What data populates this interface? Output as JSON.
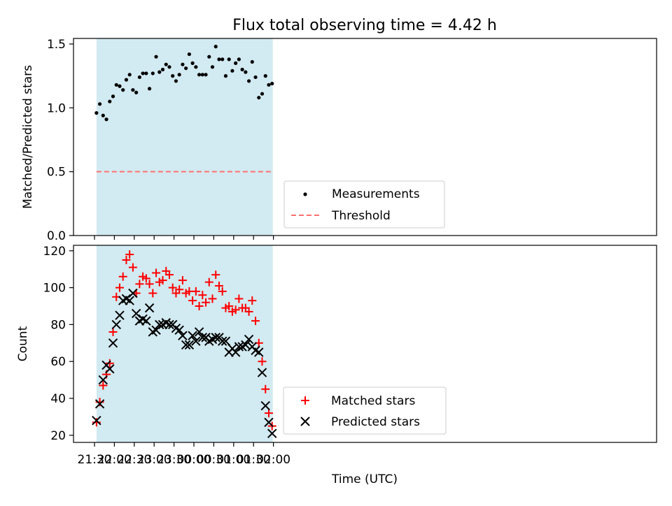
{
  "colors": {
    "observing_window": "#add8e6",
    "measurements": "#000000",
    "threshold": "#ff7070",
    "matched": "#ff0000",
    "predicted": "#000000"
  },
  "chart_data": [
    {
      "type": "scatter",
      "title": "Flux total observing time = 4.42 h",
      "ylabel": "Matched/Predicted stars",
      "xlabel": "",
      "ylim": [
        0.0,
        1.55
      ],
      "yticks": [
        "0.0",
        "0.5",
        "1.0",
        "1.5"
      ],
      "ytick_values": [
        0.0,
        0.5,
        1.0,
        1.5
      ],
      "shaded_region": [
        "21:33",
        "22:00+1:59"
      ],
      "threshold": 0.5,
      "legend": {
        "position": "lower center",
        "entries": [
          "Measurements",
          "Threshold"
        ]
      },
      "series": [
        {
          "name": "Measurements",
          "x": [
            "21:33",
            "21:38",
            "21:43",
            "21:48",
            "21:53",
            "21:58",
            "22:03",
            "22:08",
            "22:13",
            "22:18",
            "22:23",
            "22:28",
            "22:33",
            "22:38",
            "22:43",
            "22:48",
            "22:53",
            "22:58",
            "23:03",
            "23:08",
            "23:13",
            "23:18",
            "23:23",
            "23:28",
            "23:33",
            "23:38",
            "23:43",
            "23:48",
            "23:53",
            "23:58",
            "00:03",
            "00:08",
            "00:13",
            "00:18",
            "00:23",
            "00:28",
            "00:33",
            "00:38",
            "00:43",
            "00:48",
            "00:53",
            "00:58",
            "01:03",
            "01:08",
            "01:13",
            "01:18",
            "01:23",
            "01:28",
            "01:33",
            "01:38",
            "01:43",
            "01:48",
            "01:53",
            "01:58"
          ],
          "values": [
            0.96,
            1.03,
            0.94,
            0.91,
            1.05,
            1.09,
            1.18,
            1.17,
            1.14,
            1.22,
            1.26,
            1.14,
            1.12,
            1.24,
            1.27,
            1.27,
            1.15,
            1.27,
            1.4,
            1.28,
            1.3,
            1.34,
            1.32,
            1.25,
            1.21,
            1.26,
            1.34,
            1.31,
            1.42,
            1.35,
            1.32,
            1.26,
            1.26,
            1.26,
            1.4,
            1.32,
            1.48,
            1.38,
            1.38,
            1.25,
            1.38,
            1.29,
            1.35,
            1.38,
            1.3,
            1.28,
            1.21,
            1.36,
            1.24,
            1.08,
            1.11,
            1.25,
            1.18,
            1.19
          ]
        }
      ]
    },
    {
      "type": "scatter",
      "title": "",
      "ylabel": "Count",
      "xlabel": "Time (UTC)",
      "ylim": [
        16,
        122
      ],
      "yticks": [
        "20",
        "40",
        "60",
        "80",
        "100",
        "120"
      ],
      "ytick_values": [
        20,
        40,
        60,
        80,
        100,
        120
      ],
      "xticks": [
        "21:30",
        "22:00",
        "22:30",
        "23:00",
        "23:30",
        "00:00",
        "00:30",
        "01:00",
        "01:30",
        "02:00"
      ],
      "shaded_region": [
        "21:33",
        "01:59"
      ],
      "legend": {
        "position": "lower center",
        "entries": [
          "Matched stars",
          "Predicted stars"
        ]
      },
      "series": [
        {
          "name": "Matched stars",
          "x": [
            "21:33",
            "21:38",
            "21:43",
            "21:48",
            "21:53",
            "21:58",
            "22:03",
            "22:08",
            "22:13",
            "22:18",
            "22:23",
            "22:28",
            "22:33",
            "22:38",
            "22:43",
            "22:48",
            "22:53",
            "22:58",
            "23:03",
            "23:08",
            "23:13",
            "23:18",
            "23:23",
            "23:28",
            "23:33",
            "23:38",
            "23:43",
            "23:48",
            "23:53",
            "23:58",
            "00:03",
            "00:08",
            "00:13",
            "00:18",
            "00:23",
            "00:28",
            "00:33",
            "00:38",
            "00:43",
            "00:48",
            "00:53",
            "00:58",
            "01:03",
            "01:08",
            "01:13",
            "01:18",
            "01:23",
            "01:28",
            "01:33",
            "01:38",
            "01:43",
            "01:48",
            "01:53",
            "01:58"
          ],
          "values": [
            27,
            38,
            47,
            53,
            59,
            76,
            95,
            100,
            106,
            115,
            118,
            111,
            97,
            102,
            106,
            105,
            102,
            97,
            108,
            103,
            104,
            109,
            107,
            100,
            97,
            99,
            104,
            97,
            98,
            93,
            98,
            90,
            96,
            92,
            103,
            94,
            107,
            101,
            98,
            89,
            90,
            87,
            88,
            94,
            89,
            89,
            87,
            93,
            82,
            70,
            60,
            45,
            32,
            25
          ]
        },
        {
          "name": "Predicted stars",
          "x": [
            "21:33",
            "21:38",
            "21:43",
            "21:48",
            "21:53",
            "21:58",
            "22:03",
            "22:08",
            "22:13",
            "22:18",
            "22:23",
            "22:28",
            "22:33",
            "22:38",
            "22:43",
            "22:48",
            "22:53",
            "22:58",
            "23:03",
            "23:08",
            "23:13",
            "23:18",
            "23:23",
            "23:28",
            "23:33",
            "23:38",
            "23:43",
            "23:48",
            "23:53",
            "23:58",
            "00:03",
            "00:08",
            "00:13",
            "00:18",
            "00:23",
            "00:28",
            "00:33",
            "00:38",
            "00:43",
            "00:48",
            "00:53",
            "00:58",
            "01:03",
            "01:08",
            "01:13",
            "01:18",
            "01:23",
            "01:28",
            "01:33",
            "01:38",
            "01:43",
            "01:48",
            "01:53",
            "01:58"
          ],
          "values": [
            28,
            37,
            50,
            58,
            56,
            70,
            80,
            85,
            93,
            94,
            93,
            97,
            86,
            82,
            83,
            82,
            89,
            76,
            77,
            80,
            80,
            81,
            80,
            80,
            78,
            77,
            74,
            69,
            69,
            74,
            71,
            76,
            73,
            73,
            71,
            72,
            73,
            73,
            71,
            71,
            65,
            67,
            65,
            68,
            68,
            69,
            72,
            68,
            66,
            65,
            54,
            36,
            27,
            21
          ]
        }
      ]
    }
  ]
}
